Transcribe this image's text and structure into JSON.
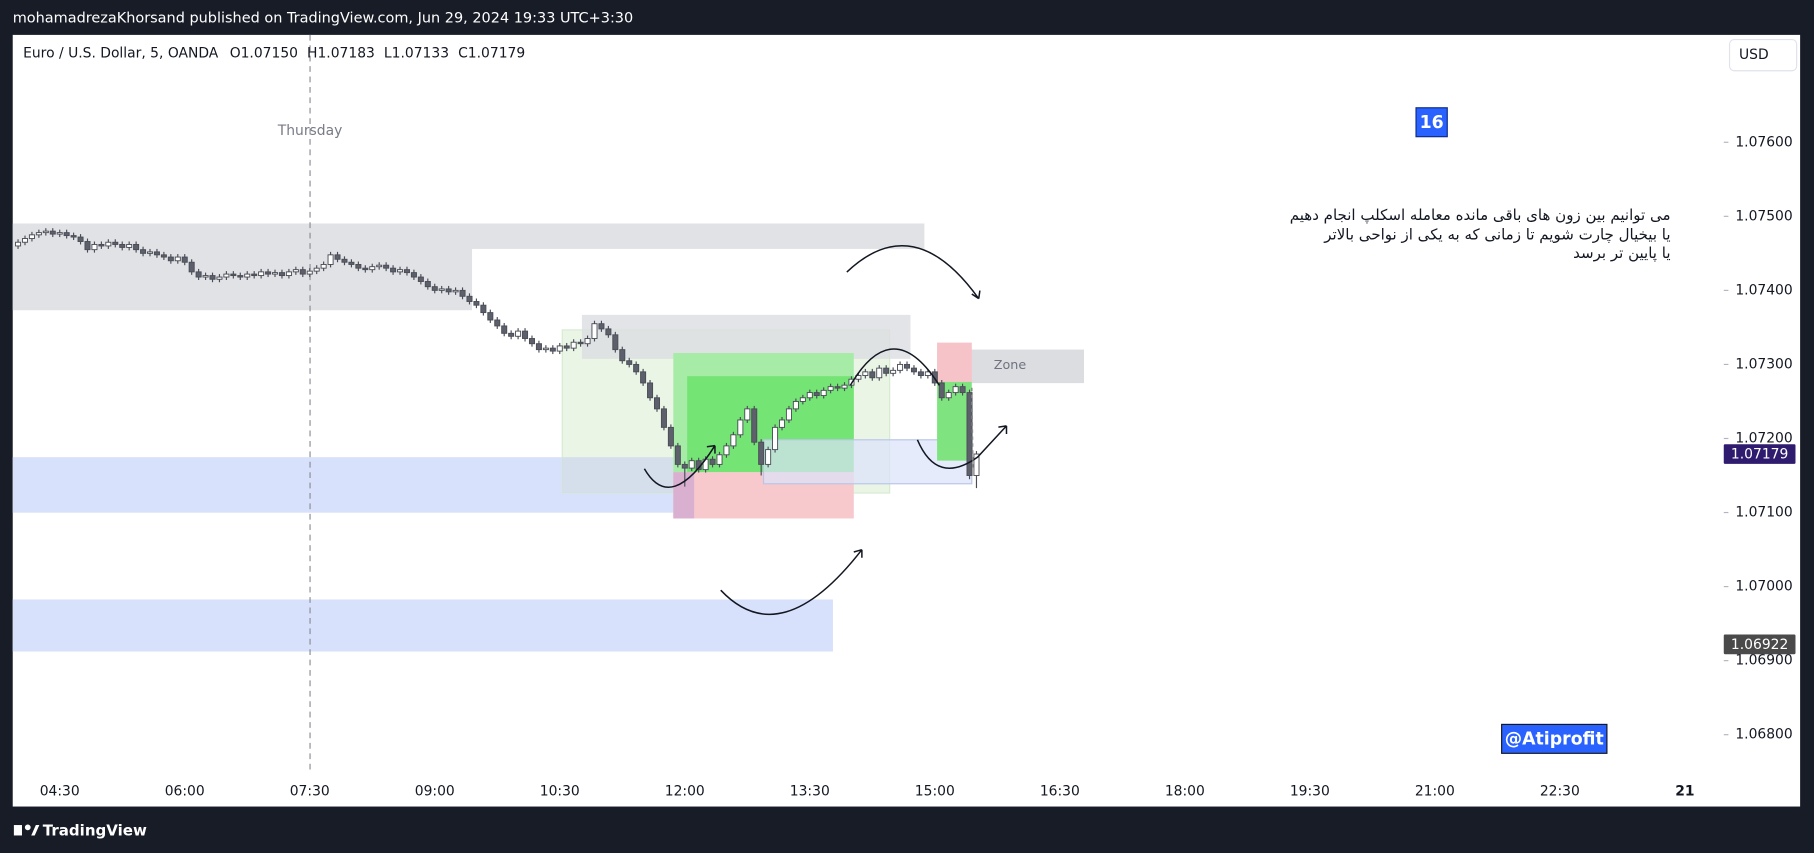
{
  "header": {
    "published": "mohamadrezaKhorsand published on TradingView.com, Jun 29, 2024 19:33 UTC+3:30",
    "currency": "USD",
    "brand": "TradingView"
  },
  "chart_data": {
    "type": "candlestick",
    "title": "Euro / U.S. Dollar, 5, OANDA",
    "ohlc_legend": [
      {
        "key": "O",
        "text": "1.07150"
      },
      {
        "key": "H",
        "text": "1.07183"
      },
      {
        "key": "L",
        "text": "1.07133"
      },
      {
        "key": "C",
        "text": "1.07179"
      }
    ],
    "up_color": "#ffffff",
    "down_color": "#5d606b",
    "wick_color": "#4a4d57",
    "x": [
      "04:00",
      "04:05",
      "04:10",
      "04:15",
      "04:20",
      "04:25",
      "04:30",
      "04:35",
      "04:40",
      "04:45",
      "04:50",
      "04:55",
      "05:00",
      "05:05",
      "05:10",
      "05:15",
      "05:20",
      "05:25",
      "05:30",
      "05:35",
      "05:40",
      "05:45",
      "05:50",
      "05:55",
      "06:00",
      "06:05",
      "06:10",
      "06:15",
      "06:20",
      "06:25",
      "06:30",
      "06:35",
      "06:40",
      "06:45",
      "06:50",
      "06:55",
      "07:00",
      "07:05",
      "07:10",
      "07:15",
      "07:20",
      "07:25",
      "07:30",
      "07:35",
      "07:40",
      "07:45",
      "07:50",
      "07:55",
      "08:00",
      "08:05",
      "08:10",
      "08:15",
      "08:20",
      "08:25",
      "08:30",
      "08:35",
      "08:40",
      "08:45",
      "08:50",
      "08:55",
      "09:00",
      "09:05",
      "09:10",
      "09:15",
      "09:20",
      "09:25",
      "09:30",
      "09:35",
      "09:40",
      "09:45",
      "09:50",
      "09:55",
      "10:00",
      "10:05",
      "10:10",
      "10:15",
      "10:20",
      "10:25",
      "10:30",
      "10:35",
      "10:40",
      "10:45",
      "10:50",
      "10:55",
      "11:00",
      "11:05",
      "11:10",
      "11:15",
      "11:20",
      "11:25",
      "11:30",
      "11:35",
      "11:40",
      "11:45",
      "11:50",
      "11:55",
      "12:00",
      "12:05",
      "12:10",
      "12:15",
      "12:20",
      "12:25",
      "12:30",
      "12:35",
      "12:40",
      "12:45",
      "12:50",
      "12:55",
      "13:00",
      "13:05",
      "13:10",
      "13:15",
      "13:20",
      "13:25",
      "13:30",
      "13:35",
      "13:40",
      "13:45",
      "13:50",
      "13:55",
      "14:00",
      "14:05",
      "14:10",
      "14:15",
      "14:20",
      "14:25",
      "14:30",
      "14:35",
      "14:40",
      "14:45",
      "14:50",
      "14:55",
      "15:00",
      "15:05",
      "15:10",
      "15:15",
      "15:20",
      "15:25",
      "15:30"
    ],
    "open": [
      1.0746,
      1.07465,
      1.0747,
      1.07475,
      1.07478,
      1.0748,
      1.07476,
      1.07478,
      1.07474,
      1.07472,
      1.07466,
      1.07455,
      1.07462,
      1.0746,
      1.07465,
      1.07462,
      1.07458,
      1.07462,
      1.07455,
      1.0745,
      1.07452,
      1.07448,
      1.07445,
      1.0744,
      1.07445,
      1.07438,
      1.07425,
      1.07418,
      1.0742,
      1.07415,
      1.07418,
      1.07422,
      1.0742,
      1.07418,
      1.07422,
      1.0742,
      1.07425,
      1.07422,
      1.07424,
      1.0742,
      1.07425,
      1.07428,
      1.07422,
      1.07426,
      1.0743,
      1.07435,
      1.07448,
      1.07442,
      1.07438,
      1.07435,
      1.0743,
      1.07428,
      1.07432,
      1.07434,
      1.0743,
      1.07425,
      1.07428,
      1.07424,
      1.07418,
      1.07412,
      1.07405,
      1.074,
      1.07402,
      1.07398,
      1.074,
      1.07392,
      1.07385,
      1.0738,
      1.0737,
      1.0736,
      1.07352,
      1.07342,
      1.07338,
      1.07345,
      1.07335,
      1.07328,
      1.0732,
      1.07322,
      1.07318,
      1.07325,
      1.07322,
      1.0733,
      1.07328,
      1.07335,
      1.07355,
      1.07348,
      1.0734,
      1.0732,
      1.07305,
      1.073,
      1.0729,
      1.07275,
      1.07255,
      1.0724,
      1.07215,
      1.0719,
      1.07165,
      1.0716,
      1.0717,
      1.07158,
      1.07172,
      1.07165,
      1.07178,
      1.0719,
      1.07205,
      1.07225,
      1.0724,
      1.07195,
      1.07165,
      1.07185,
      1.07215,
      1.07225,
      1.0724,
      1.0725,
      1.07255,
      1.07262,
      1.07258,
      1.07265,
      1.0727,
      1.07268,
      1.07272,
      1.0728,
      1.07285,
      1.0729,
      1.07282,
      1.07295,
      1.07288,
      1.07292,
      1.073,
      1.07295,
      1.0729,
      1.07285,
      1.0729,
      1.07275,
      1.07255,
      1.07262,
      1.0727,
      1.07262,
      1.0715
    ],
    "high": [
      1.07469,
      1.07474,
      1.07479,
      1.07482,
      1.07484,
      1.07484,
      1.07482,
      1.07482,
      1.07478,
      1.07476,
      1.0747,
      1.07466,
      1.07466,
      1.07469,
      1.07469,
      1.07466,
      1.07466,
      1.07466,
      1.07459,
      1.07456,
      1.07456,
      1.07452,
      1.07449,
      1.07449,
      1.07449,
      1.07442,
      1.07429,
      1.07424,
      1.07424,
      1.07422,
      1.07426,
      1.07426,
      1.07424,
      1.07426,
      1.07426,
      1.07429,
      1.07429,
      1.07428,
      1.07428,
      1.07429,
      1.07432,
      1.07432,
      1.0743,
      1.07434,
      1.07439,
      1.07452,
      1.07452,
      1.07446,
      1.07442,
      1.07439,
      1.07434,
      1.07436,
      1.07438,
      1.07438,
      1.07434,
      1.07432,
      1.07432,
      1.07428,
      1.07422,
      1.07416,
      1.07409,
      1.07406,
      1.07406,
      1.07404,
      1.07404,
      1.07396,
      1.07389,
      1.07384,
      1.07374,
      1.07364,
      1.07356,
      1.07346,
      1.07349,
      1.07349,
      1.07339,
      1.07332,
      1.07326,
      1.07326,
      1.07329,
      1.07329,
      1.07334,
      1.07334,
      1.07339,
      1.07359,
      1.07359,
      1.07352,
      1.07344,
      1.07324,
      1.07309,
      1.07304,
      1.07294,
      1.07279,
      1.07259,
      1.07244,
      1.07219,
      1.07194,
      1.07169,
      1.07174,
      1.07174,
      1.07176,
      1.07176,
      1.07182,
      1.07194,
      1.07209,
      1.07229,
      1.07244,
      1.07244,
      1.07199,
      1.07189,
      1.07219,
      1.07229,
      1.07244,
      1.07254,
      1.07259,
      1.07266,
      1.07266,
      1.07269,
      1.07274,
      1.07274,
      1.07276,
      1.07284,
      1.07289,
      1.07294,
      1.07294,
      1.07299,
      1.07299,
      1.07296,
      1.07304,
      1.07304,
      1.07299,
      1.07294,
      1.07294,
      1.07294,
      1.07279,
      1.07266,
      1.07274,
      1.07274,
      1.07266,
      1.07183
    ],
    "low": [
      1.07456,
      1.07461,
      1.07466,
      1.07471,
      1.07474,
      1.07472,
      1.07472,
      1.0747,
      1.07468,
      1.07462,
      1.07451,
      1.07451,
      1.07456,
      1.07456,
      1.07458,
      1.07454,
      1.07454,
      1.07451,
      1.07446,
      1.07446,
      1.07444,
      1.07441,
      1.07436,
      1.07436,
      1.07434,
      1.07421,
      1.07414,
      1.07414,
      1.07411,
      1.07411,
      1.07414,
      1.07416,
      1.07414,
      1.07414,
      1.07416,
      1.07416,
      1.07418,
      1.07418,
      1.07416,
      1.07416,
      1.07421,
      1.07418,
      1.07418,
      1.07422,
      1.07426,
      1.07431,
      1.07438,
      1.07434,
      1.07431,
      1.07426,
      1.07424,
      1.07424,
      1.07428,
      1.07426,
      1.07421,
      1.07421,
      1.0742,
      1.07414,
      1.07408,
      1.07401,
      1.07396,
      1.07396,
      1.07394,
      1.07394,
      1.07388,
      1.07381,
      1.07376,
      1.07366,
      1.07356,
      1.07348,
      1.07338,
      1.07334,
      1.07334,
      1.07331,
      1.07324,
      1.07316,
      1.07316,
      1.07314,
      1.07314,
      1.07318,
      1.07318,
      1.07324,
      1.07324,
      1.07331,
      1.07344,
      1.07336,
      1.07316,
      1.07301,
      1.07296,
      1.07286,
      1.07271,
      1.07251,
      1.07236,
      1.07211,
      1.07186,
      1.07161,
      1.07135,
      1.07156,
      1.07154,
      1.07154,
      1.07161,
      1.07161,
      1.07174,
      1.07186,
      1.07201,
      1.07221,
      1.07191,
      1.0715,
      1.07161,
      1.07181,
      1.07211,
      1.07221,
      1.07236,
      1.07246,
      1.07251,
      1.07254,
      1.07254,
      1.07261,
      1.07264,
      1.07264,
      1.07268,
      1.07276,
      1.07281,
      1.07278,
      1.07278,
      1.07284,
      1.07284,
      1.07288,
      1.07291,
      1.07286,
      1.07281,
      1.07281,
      1.07271,
      1.07251,
      1.07251,
      1.07258,
      1.07258,
      1.07145,
      1.07133
    ],
    "close": [
      1.07465,
      1.0747,
      1.07475,
      1.07478,
      1.0748,
      1.07476,
      1.07478,
      1.07474,
      1.07472,
      1.07466,
      1.07455,
      1.07462,
      1.0746,
      1.07465,
      1.07462,
      1.07458,
      1.07462,
      1.07455,
      1.0745,
      1.07452,
      1.07448,
      1.07445,
      1.0744,
      1.07445,
      1.07438,
      1.07425,
      1.07418,
      1.0742,
      1.07415,
      1.07418,
      1.07422,
      1.0742,
      1.07418,
      1.07422,
      1.0742,
      1.07425,
      1.07422,
      1.07424,
      1.0742,
      1.07425,
      1.07428,
      1.07422,
      1.07426,
      1.0743,
      1.07435,
      1.07448,
      1.07442,
      1.07438,
      1.07435,
      1.0743,
      1.07428,
      1.07432,
      1.07434,
      1.0743,
      1.07425,
      1.07428,
      1.07424,
      1.07418,
      1.07412,
      1.07405,
      1.074,
      1.07402,
      1.07398,
      1.074,
      1.07392,
      1.07385,
      1.0738,
      1.0737,
      1.0736,
      1.07352,
      1.07342,
      1.07338,
      1.07345,
      1.07335,
      1.07328,
      1.0732,
      1.07322,
      1.07318,
      1.07325,
      1.07322,
      1.0733,
      1.07328,
      1.07335,
      1.07355,
      1.07348,
      1.0734,
      1.0732,
      1.07305,
      1.073,
      1.0729,
      1.07275,
      1.07255,
      1.0724,
      1.07215,
      1.0719,
      1.07165,
      1.0716,
      1.0717,
      1.07158,
      1.07172,
      1.07165,
      1.07178,
      1.0719,
      1.07205,
      1.07225,
      1.0724,
      1.07195,
      1.07165,
      1.07185,
      1.07215,
      1.07225,
      1.0724,
      1.0725,
      1.07255,
      1.07262,
      1.07258,
      1.07265,
      1.0727,
      1.07268,
      1.07272,
      1.0728,
      1.07285,
      1.0729,
      1.07282,
      1.07295,
      1.07288,
      1.07292,
      1.073,
      1.07295,
      1.0729,
      1.07285,
      1.0729,
      1.07275,
      1.07255,
      1.07262,
      1.0727,
      1.07262,
      1.0715,
      1.07179
    ],
    "xlim": [
      "03:57",
      "24:28"
    ],
    "xticks": [
      "04:30",
      "06:00",
      "07:30",
      "09:00",
      "10:30",
      "12:00",
      "13:30",
      "15:00",
      "16:30",
      "18:00",
      "19:30",
      "21:00",
      "22:30",
      {
        "value": "24:00",
        "label": "21"
      }
    ],
    "ylim": [
      1.06703,
      1.07745
    ],
    "yticks": [
      {
        "value": 1.068,
        "label": "1.06800"
      },
      {
        "value": 1.069,
        "label": "1.06900"
      },
      {
        "value": 1.07,
        "label": "1.07000"
      },
      {
        "value": 1.071,
        "label": "1.07100"
      },
      {
        "value": 1.072,
        "label": "1.07200"
      },
      {
        "value": 1.073,
        "label": "1.07300"
      },
      {
        "value": 1.074,
        "label": "1.07400"
      },
      {
        "value": 1.075,
        "label": "1.07500"
      },
      {
        "value": 1.076,
        "label": "1.07600"
      }
    ],
    "price_labels": [
      {
        "value": 1.07179,
        "color": "#2f1c6e"
      },
      {
        "value": 1.06922,
        "color": "#4a4a4a"
      }
    ],
    "annotations": {
      "day": "Thursday",
      "zone": "Zone",
      "badge": "16",
      "note": [
        "می توانیم بین زون های باقی مانده معامله اسکلپ انجام دهیم",
        "یا بیخیال چارت شویم تا زمانی که به یکی از نواحی بالاتر",
        "یا پایین تر برسد"
      ],
      "watermark": "@Atiprofit"
    }
  }
}
